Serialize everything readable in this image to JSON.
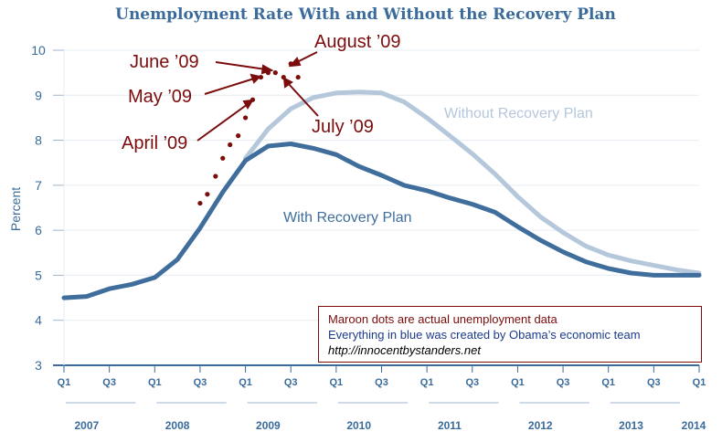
{
  "chart_data": {
    "type": "line",
    "title": "Unemployment Rate With and Without the Recovery Plan",
    "ylabel": "Percent",
    "xlabel": "",
    "ylim": [
      3,
      10
    ],
    "yticks": [
      3,
      4,
      5,
      6,
      7,
      8,
      9,
      10
    ],
    "xlim": [
      2007.0,
      2014.0
    ],
    "quarter_ticks": [
      {
        "x": 2007.0,
        "label": "Q1"
      },
      {
        "x": 2007.5,
        "label": "Q3"
      },
      {
        "x": 2008.0,
        "label": "Q1"
      },
      {
        "x": 2008.5,
        "label": "Q3"
      },
      {
        "x": 2009.0,
        "label": "Q1"
      },
      {
        "x": 2009.5,
        "label": "Q3"
      },
      {
        "x": 2010.0,
        "label": "Q1"
      },
      {
        "x": 2010.5,
        "label": "Q3"
      },
      {
        "x": 2011.0,
        "label": "Q1"
      },
      {
        "x": 2011.5,
        "label": "Q3"
      },
      {
        "x": 2012.0,
        "label": "Q1"
      },
      {
        "x": 2012.5,
        "label": "Q3"
      },
      {
        "x": 2013.0,
        "label": "Q1"
      },
      {
        "x": 2013.5,
        "label": "Q3"
      },
      {
        "x": 2014.0,
        "label": "Q1"
      }
    ],
    "year_labels": [
      {
        "x": 2007.25,
        "label": "2007"
      },
      {
        "x": 2008.25,
        "label": "2008"
      },
      {
        "x": 2009.25,
        "label": "2009"
      },
      {
        "x": 2010.25,
        "label": "2010"
      },
      {
        "x": 2011.25,
        "label": "2011"
      },
      {
        "x": 2012.25,
        "label": "2012"
      },
      {
        "x": 2013.25,
        "label": "2013"
      },
      {
        "x": 2014.0,
        "label": "2014"
      }
    ],
    "series": [
      {
        "name": "Without Recovery Plan",
        "color": "#b4c7db",
        "x": [
          2009.0,
          2009.25,
          2009.5,
          2009.75,
          2010.0,
          2010.25,
          2010.5,
          2010.75,
          2011.0,
          2011.25,
          2011.5,
          2011.75,
          2012.0,
          2012.25,
          2012.5,
          2012.75,
          2013.0,
          2013.25,
          2013.5,
          2013.75,
          2014.0
        ],
        "values": [
          7.6,
          8.25,
          8.7,
          8.95,
          9.05,
          9.07,
          9.05,
          8.85,
          8.5,
          8.1,
          7.7,
          7.25,
          6.75,
          6.3,
          5.95,
          5.65,
          5.45,
          5.32,
          5.22,
          5.12,
          5.05
        ]
      },
      {
        "name": "With Recovery Plan",
        "color": "#3f6d9c",
        "x": [
          2007.0,
          2007.25,
          2007.5,
          2007.75,
          2008.0,
          2008.25,
          2008.5,
          2008.75,
          2009.0,
          2009.25,
          2009.5,
          2009.75,
          2010.0,
          2010.25,
          2010.5,
          2010.75,
          2011.0,
          2011.25,
          2011.5,
          2011.75,
          2012.0,
          2012.25,
          2012.5,
          2012.75,
          2013.0,
          2013.25,
          2013.5,
          2013.75,
          2014.0
        ],
        "values": [
          4.5,
          4.53,
          4.7,
          4.8,
          4.95,
          5.35,
          6.05,
          6.85,
          7.55,
          7.87,
          7.92,
          7.82,
          7.68,
          7.42,
          7.22,
          7.0,
          6.88,
          6.72,
          6.58,
          6.4,
          6.08,
          5.78,
          5.52,
          5.3,
          5.15,
          5.05,
          5.0,
          5.0,
          5.0
        ]
      },
      {
        "name": "Actual unemployment (maroon dots)",
        "color": "#7b0c0c",
        "x": [
          2008.5,
          2008.58,
          2008.67,
          2008.75,
          2008.83,
          2008.92,
          2009.0,
          2009.08,
          2009.17,
          2009.25,
          2009.33,
          2009.42,
          2009.5,
          2009.58
        ],
        "values": [
          6.6,
          6.8,
          7.2,
          7.6,
          7.9,
          8.1,
          8.5,
          8.9,
          9.4,
          9.5,
          9.5,
          9.4,
          9.7,
          9.4
        ]
      }
    ],
    "series_labels": {
      "without": "Without Recovery Plan",
      "with": "With Recovery Plan"
    },
    "annotations": [
      {
        "text": "August ’09"
      },
      {
        "text": "June ’09"
      },
      {
        "text": "May ’09"
      },
      {
        "text": "July ’09"
      },
      {
        "text": "April ’09"
      }
    ]
  },
  "legend_box": {
    "line1": "Maroon dots are actual unemployment data",
    "line2": "Everything in blue was created by Obama’s economic team",
    "line3": "http://innocentbystanders.net"
  }
}
